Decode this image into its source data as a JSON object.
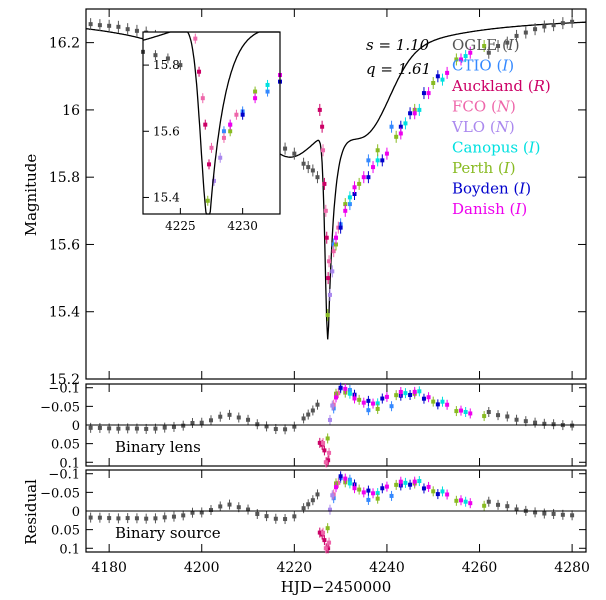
{
  "chart_data": {
    "type": "scatter",
    "xlabel": "HJD−2450000",
    "ylabel_main": "Magnitude",
    "ylabel_residual": "Residual",
    "xlim": [
      4175,
      4283
    ],
    "x_ticks": [
      "4180",
      "4200",
      "4220",
      "4240",
      "4260",
      "4280"
    ],
    "model_text": {
      "s": "s = 1.10",
      "q": "q = 1.61"
    },
    "panels": [
      {
        "id": "main",
        "ylim": [
          16.3,
          15.2
        ],
        "y_ticks": [
          "15.2",
          "15.4",
          "15.6",
          "15.8",
          "16",
          "16.2"
        ]
      },
      {
        "id": "residual-lens",
        "label": "Binary lens",
        "ylim": [
          -0.11,
          0.11
        ],
        "y_ticks": [
          "0.1",
          "0.05",
          "0",
          "−0.05",
          "−0.1"
        ]
      },
      {
        "id": "residual-source",
        "label": "Binary source",
        "ylim": [
          -0.11,
          0.11
        ],
        "y_ticks": [
          "0.1",
          "0.05",
          "0",
          "−0.05",
          "−0.1"
        ]
      }
    ],
    "inset": {
      "xlim": [
        4222,
        4233
      ],
      "ylim": [
        15.9,
        15.35
      ],
      "x_ticks": [
        "4225",
        "4230"
      ],
      "y_ticks": [
        "15.4",
        "15.6",
        "15.8"
      ]
    },
    "series": [
      {
        "name": "OGLE",
        "band": "I",
        "color": "#555555",
        "x": [
          4176,
          4178,
          4180,
          4182,
          4184,
          4186,
          4188,
          4190,
          4192,
          4194,
          4196,
          4198,
          4200,
          4202,
          4204,
          4206,
          4208,
          4210,
          4212,
          4214,
          4216,
          4218,
          4220,
          4222,
          4223,
          4224,
          4225,
          4262,
          4264,
          4266,
          4268,
          4270,
          4272,
          4274,
          4276,
          4278,
          4280
        ],
        "y": [
          16.255,
          16.252,
          16.25,
          16.247,
          16.24,
          16.235,
          16.23,
          16.22,
          16.205,
          16.19,
          16.17,
          16.14,
          16.12,
          16.085,
          16.04,
          16.0,
          15.98,
          15.955,
          15.94,
          15.915,
          15.9,
          15.885,
          15.87,
          15.84,
          15.83,
          15.82,
          15.8,
          16.17,
          16.19,
          16.2,
          16.22,
          16.23,
          16.24,
          16.248,
          16.252,
          16.258,
          16.262
        ]
      },
      {
        "name": "CTIO",
        "band": "I",
        "color": "#3388ff",
        "x": [
          4228.5,
          4230,
          4232,
          4236,
          4241
        ],
        "y": [
          15.6,
          15.66,
          15.72,
          15.85,
          15.95
        ]
      },
      {
        "name": "Auckland",
        "band": "R",
        "color": "#cc0066",
        "x": [
          4225.5,
          4226,
          4226.5,
          4227,
          4227.3
        ],
        "y": [
          16.0,
          15.95,
          15.78,
          15.62,
          15.5
        ]
      },
      {
        "name": "FCO",
        "band": "N",
        "color": "#ee66aa",
        "x": [
          4226.2,
          4226.8,
          4227.5,
          4228.5,
          4229.5
        ],
        "y": [
          15.88,
          15.7,
          15.55,
          15.58,
          15.65
        ]
      },
      {
        "name": "VLO",
        "band": "N",
        "color": "#aa88ee",
        "x": [
          4227.7,
          4228.2,
          4229
        ],
        "y": [
          15.45,
          15.52,
          15.62
        ]
      },
      {
        "name": "Canopus",
        "band": "I",
        "color": "#00e0e0",
        "x": [
          4232,
          4238,
          4244,
          4247,
          4252,
          4257
        ],
        "y": [
          15.74,
          15.85,
          15.96,
          16.0,
          16.09,
          16.16
        ]
      },
      {
        "name": "Perth",
        "band": "I",
        "color": "#88bb22",
        "x": [
          4227.2,
          4229,
          4231,
          4234,
          4238,
          4242,
          4246,
          4250,
          4255,
          4261
        ],
        "y": [
          15.39,
          15.6,
          15.72,
          15.78,
          15.88,
          15.92,
          16.0,
          16.08,
          16.15,
          16.19
        ]
      },
      {
        "name": "Boyden",
        "band": "I",
        "color": "#0000cc",
        "x": [
          4230,
          4233,
          4236,
          4239,
          4243,
          4245,
          4248,
          4251
        ],
        "y": [
          15.65,
          15.75,
          15.8,
          15.85,
          15.95,
          15.99,
          16.05,
          16.1
        ]
      },
      {
        "name": "Danish",
        "band": "I",
        "color": "#ee00ee",
        "x": [
          4229,
          4231,
          4233,
          4235,
          4237,
          4240,
          4243,
          4246,
          4249,
          4253,
          4256,
          4258
        ],
        "y": [
          15.62,
          15.7,
          15.77,
          15.8,
          15.83,
          15.87,
          15.93,
          15.99,
          16.05,
          16.11,
          16.15,
          16.17
        ]
      }
    ]
  }
}
